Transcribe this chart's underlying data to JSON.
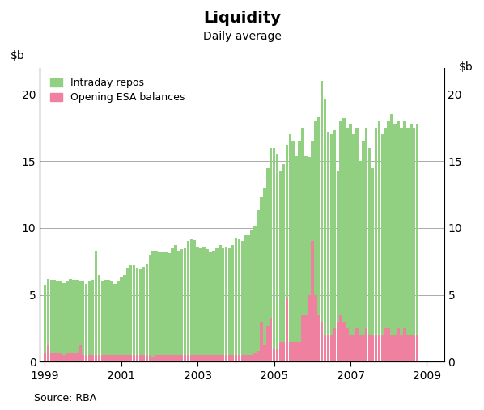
{
  "title": "Liquidity",
  "subtitle": "Daily average",
  "source": "Source: RBA",
  "intraday_color": "#90d080",
  "esa_color": "#f080a0",
  "ylim": [
    0,
    22
  ],
  "yticks": [
    0,
    5,
    10,
    15,
    20
  ],
  "grid_color": "#aaaaaa",
  "xticks": [
    1999,
    2001,
    2003,
    2005,
    2007,
    2009
  ],
  "xlim": [
    1998.87,
    2009.45
  ],
  "intraday_repos": [
    5.7,
    6.2,
    6.1,
    6.1,
    6.0,
    6.0,
    5.9,
    6.0,
    6.2,
    6.1,
    6.1,
    6.0,
    6.0,
    5.8,
    6.0,
    6.1,
    8.3,
    6.5,
    6.0,
    6.1,
    6.1,
    6.0,
    5.8,
    6.0,
    6.3,
    6.5,
    7.0,
    7.2,
    7.2,
    7.0,
    6.9,
    7.1,
    7.3,
    8.0,
    8.3,
    8.3,
    8.2,
    8.2,
    8.2,
    8.1,
    8.5,
    8.7,
    8.3,
    8.4,
    8.5,
    9.0,
    9.2,
    9.1,
    8.6,
    8.5,
    8.6,
    8.4,
    8.2,
    8.3,
    8.5,
    8.7,
    8.5,
    8.6,
    8.5,
    8.7,
    9.3,
    9.2,
    9.0,
    9.5,
    9.5,
    9.8,
    10.1,
    11.3,
    12.3,
    13.0,
    14.5,
    16.0,
    16.0,
    15.5,
    14.3,
    14.8,
    16.2,
    17.0,
    16.5,
    15.4,
    16.5,
    17.5,
    15.4,
    15.3,
    16.5,
    18.0,
    18.3,
    21.0,
    19.6,
    17.2,
    17.0,
    17.3,
    14.3,
    18.0,
    18.2,
    17.5,
    17.8,
    17.0,
    17.5,
    15.0,
    16.5,
    17.5,
    16.0,
    14.5,
    17.5,
    18.0,
    17.0,
    17.5,
    18.0,
    18.5,
    17.8,
    18.0,
    17.5,
    18.0,
    17.5,
    17.8,
    17.5,
    17.8
  ],
  "esa_balances": [
    0.7,
    1.2,
    0.6,
    0.7,
    0.7,
    0.7,
    0.5,
    0.6,
    0.7,
    0.7,
    0.7,
    1.2,
    0.5,
    0.5,
    0.5,
    0.5,
    0.5,
    0.5,
    0.5,
    0.5,
    0.5,
    0.5,
    0.5,
    0.5,
    0.5,
    0.5,
    0.5,
    0.5,
    0.5,
    0.5,
    0.5,
    0.5,
    0.5,
    0.5,
    0.3,
    0.5,
    0.5,
    0.5,
    0.5,
    0.5,
    0.5,
    0.5,
    0.5,
    0.5,
    0.5,
    0.5,
    0.5,
    0.5,
    0.5,
    0.5,
    0.5,
    0.5,
    0.5,
    0.5,
    0.5,
    0.5,
    0.5,
    0.5,
    0.5,
    0.5,
    0.5,
    0.5,
    0.5,
    0.5,
    0.5,
    0.5,
    0.6,
    0.8,
    3.0,
    1.2,
    2.7,
    3.3,
    1.0,
    1.0,
    1.5,
    1.5,
    4.8,
    1.5,
    1.5,
    1.5,
    1.5,
    3.5,
    3.5,
    5.0,
    9.0,
    5.0,
    3.5,
    3.0,
    2.0,
    2.0,
    2.0,
    2.5,
    3.0,
    3.5,
    3.0,
    2.5,
    2.0,
    2.0,
    2.5,
    2.0,
    2.0,
    2.5,
    2.0,
    2.0,
    2.0,
    2.0,
    2.0,
    2.5,
    2.5,
    2.0,
    2.0,
    2.5,
    2.0,
    2.5,
    2.0,
    2.0,
    2.0,
    2.0
  ]
}
